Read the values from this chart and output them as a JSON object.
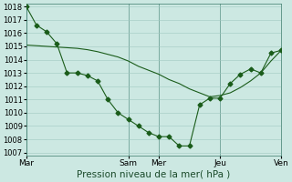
{
  "line1_y": [
    1018.0,
    1016.6,
    1016.1,
    1015.2,
    1013.0,
    1013.0,
    1012.8,
    1012.4,
    1011.0,
    1010.0,
    1009.5,
    1009.0,
    1008.5,
    1008.2,
    1008.2,
    1007.5,
    1007.5,
    1010.6,
    1011.1,
    1011.1,
    1012.2,
    1012.9,
    1013.3,
    1013.0,
    1014.5,
    1014.7
  ],
  "line2_y": [
    1015.1,
    1015.05,
    1015.0,
    1014.95,
    1014.9,
    1014.85,
    1014.75,
    1014.6,
    1014.4,
    1014.2,
    1013.9,
    1013.5,
    1013.2,
    1012.9,
    1012.5,
    1012.2,
    1011.8,
    1011.5,
    1011.2,
    1011.3,
    1011.5,
    1011.9,
    1012.4,
    1013.0,
    1013.9,
    1014.7
  ],
  "n_points": 26,
  "x_tick_positions": [
    0,
    6,
    12,
    13,
    19,
    25
  ],
  "x_tick_labels": [
    "Mar",
    "",
    "Sam",
    "Mer",
    "Jeu",
    "Ven"
  ],
  "y_min": 1007,
  "y_max": 1018,
  "y_ticks": [
    1007,
    1008,
    1009,
    1010,
    1011,
    1012,
    1013,
    1014,
    1015,
    1016,
    1017,
    1018
  ],
  "bg_color": "#cce8e2",
  "grid_color": "#a0c8c0",
  "line_color": "#1a5c1a",
  "xlabel": "Pression niveau de la mer( hPa )",
  "marker": "D",
  "marker_size": 2.5,
  "line_width": 0.8
}
